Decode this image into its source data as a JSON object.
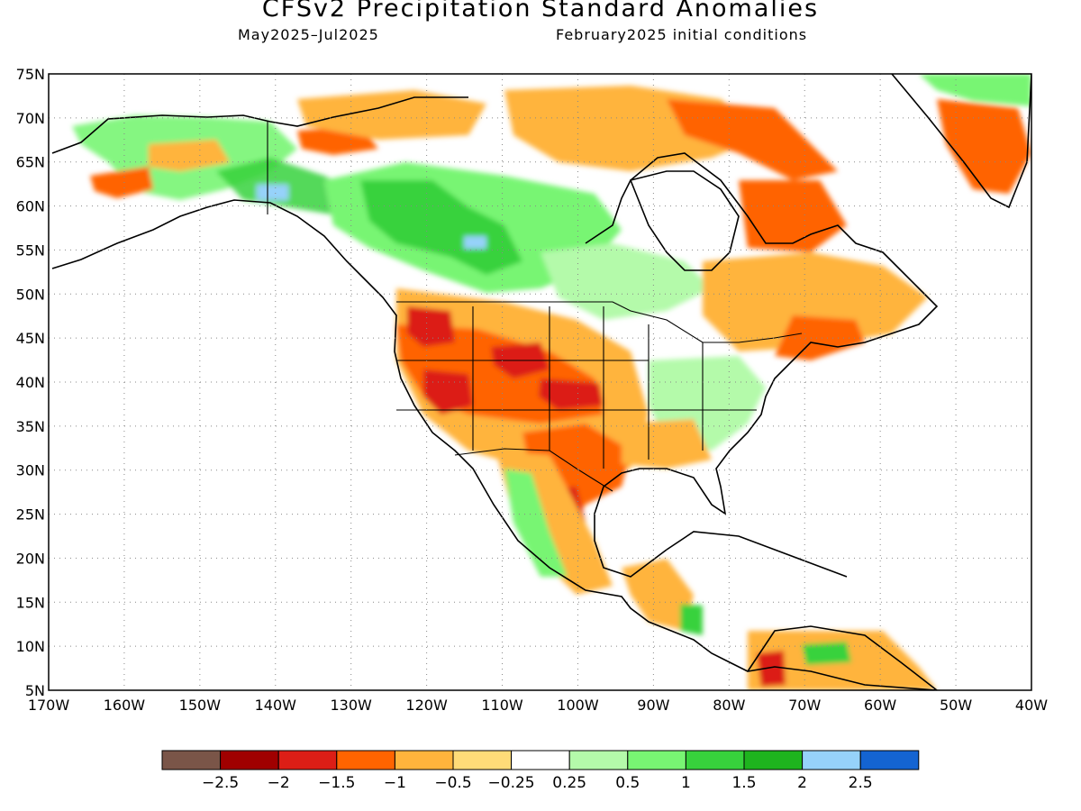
{
  "title": "CFSv2 Precipitation Standard Anomalies",
  "subtitle_left": "May2025–Jul2025",
  "subtitle_right": "February2025 initial conditions",
  "map": {
    "region": "North America",
    "lat_labels": [
      "75N",
      "70N",
      "65N",
      "60N",
      "55N",
      "50N",
      "45N",
      "40N",
      "35N",
      "30N",
      "25N",
      "20N",
      "15N",
      "10N",
      "5N"
    ],
    "lon_labels": [
      "170W",
      "160W",
      "150W",
      "140W",
      "130W",
      "120W",
      "110W",
      "100W",
      "90W",
      "80W",
      "70W",
      "60W",
      "50W",
      "40W"
    ],
    "lon_range": [
      -170,
      -40
    ],
    "lat_range": [
      5,
      75
    ],
    "gridlines": "dotted"
  },
  "colorbar": {
    "colors": [
      "#7a5548",
      "#a00000",
      "#dc1e16",
      "#ff6400",
      "#ffb43c",
      "#ffdc78",
      "#ffffff",
      "#b4faaa",
      "#78f573",
      "#37d23c",
      "#1eb41e",
      "#96d2fa",
      "#1464d2"
    ],
    "labels": [
      "−2.5",
      "−2",
      "−1.5",
      "−1",
      "−0.5",
      "−0.25",
      "0.25",
      "0.5",
      "1",
      "1.5",
      "2",
      "2.5"
    ]
  }
}
